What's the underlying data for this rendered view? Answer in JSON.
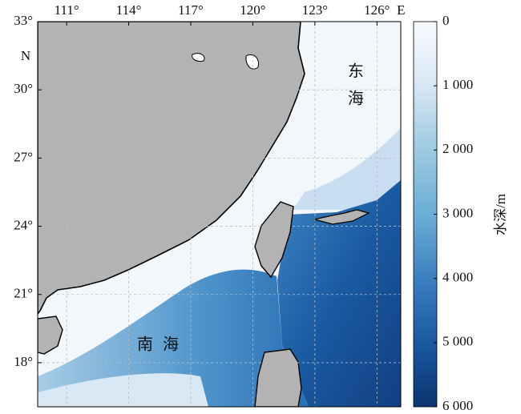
{
  "map": {
    "lonlim": [
      109.6,
      127.15
    ],
    "latlim": [
      16.06,
      33
    ],
    "lon_ticks": [
      {
        "value": 111,
        "label": "111°"
      },
      {
        "value": 114,
        "label": "114°"
      },
      {
        "value": 117,
        "label": "117°"
      },
      {
        "value": 120,
        "label": "120°"
      },
      {
        "value": 123,
        "label": "123°"
      },
      {
        "value": 126,
        "label": "126°"
      }
    ],
    "lon_suffix": "E",
    "lat_ticks": [
      {
        "value": 33,
        "label": "33°"
      },
      {
        "value": 30,
        "label": "30°"
      },
      {
        "value": 27,
        "label": "27°"
      },
      {
        "value": 24,
        "label": "24°"
      },
      {
        "value": 21,
        "label": "21°"
      },
      {
        "value": 18,
        "label": "18°"
      }
    ],
    "lat_suffix": "N",
    "sea_labels": [
      "东海",
      "南海"
    ],
    "colorbar": {
      "label": "水深/m",
      "lim": [
        0,
        6000
      ],
      "ticks": [
        0,
        {
          "value": 1000,
          "label": "1 000"
        },
        {
          "value": 2000,
          "label": "2 000"
        },
        {
          "value": 3000,
          "label": "3 000"
        },
        {
          "value": 4000,
          "label": "4 000"
        },
        {
          "value": 5000,
          "label": "5 000"
        },
        {
          "value": 6000,
          "label": "6 000"
        }
      ]
    }
  }
}
